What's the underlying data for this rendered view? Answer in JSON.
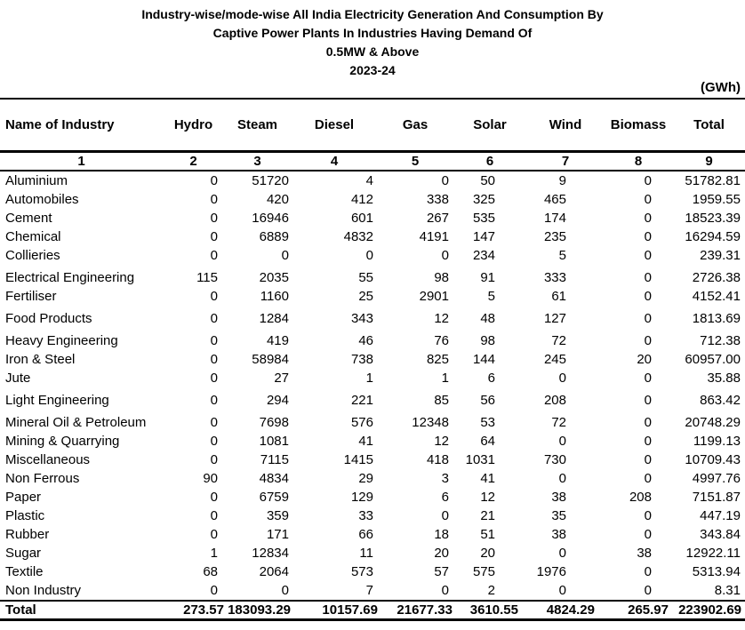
{
  "title": {
    "line1": "Industry-wise/mode-wise All India Electricity Generation And Consumption By",
    "line2": "Captive Power Plants In Industries Having Demand Of",
    "line3": "0.5MW & Above",
    "line4": "2023-24"
  },
  "unit_label": "(GWh)",
  "colors": {
    "text": "#000000",
    "background": "#ffffff",
    "rule": "#000000"
  },
  "table": {
    "columns": [
      "Name of Industry",
      "Hydro",
      "Steam",
      "Diesel",
      "Gas",
      "Solar",
      "Wind",
      "Biomass",
      "Total"
    ],
    "column_numbers": [
      "1",
      "2",
      "3",
      "4",
      "5",
      "6",
      "7",
      "8",
      "9"
    ],
    "rows": [
      {
        "name": "Aluminium",
        "values": [
          "0",
          "51720",
          "4",
          "0",
          "50",
          "9",
          "0",
          "51782.81"
        ]
      },
      {
        "name": "Automobiles",
        "values": [
          "0",
          "420",
          "412",
          "338",
          "325",
          "465",
          "0",
          "1959.55"
        ]
      },
      {
        "name": "Cement",
        "values": [
          "0",
          "16946",
          "601",
          "267",
          "535",
          "174",
          "0",
          "18523.39"
        ]
      },
      {
        "name": "Chemical",
        "values": [
          "0",
          "6889",
          "4832",
          "4191",
          "147",
          "235",
          "0",
          "16294.59"
        ]
      },
      {
        "name": "Collieries",
        "values": [
          "0",
          "0",
          "0",
          "0",
          "234",
          "5",
          "0",
          "239.31"
        ]
      },
      {
        "name": "Electrical Engineering",
        "values": [
          "115",
          "2035",
          "55",
          "98",
          "91",
          "333",
          "0",
          "2726.38"
        ],
        "gap": true
      },
      {
        "name": "Fertiliser",
        "values": [
          "0",
          "1160",
          "25",
          "2901",
          "5",
          "61",
          "0",
          "4152.41"
        ]
      },
      {
        "name": "Food Products",
        "values": [
          "0",
          "1284",
          "343",
          "12",
          "48",
          "127",
          "0",
          "1813.69"
        ],
        "gap": true
      },
      {
        "name": "Heavy Engineering",
        "values": [
          "0",
          "419",
          "46",
          "76",
          "98",
          "72",
          "0",
          "712.38"
        ],
        "gap": true
      },
      {
        "name": "Iron & Steel",
        "values": [
          "0",
          "58984",
          "738",
          "825",
          "144",
          "245",
          "20",
          "60957.00"
        ]
      },
      {
        "name": "Jute",
        "values": [
          "0",
          "27",
          "1",
          "1",
          "6",
          "0",
          "0",
          "35.88"
        ]
      },
      {
        "name": "Light Engineering",
        "values": [
          "0",
          "294",
          "221",
          "85",
          "56",
          "208",
          "0",
          "863.42"
        ],
        "gap": true
      },
      {
        "name": "Mineral Oil & Petroleum",
        "values": [
          "0",
          "7698",
          "576",
          "12348",
          "53",
          "72",
          "0",
          "20748.29"
        ],
        "gap": true
      },
      {
        "name": "Mining & Quarrying",
        "values": [
          "0",
          "1081",
          "41",
          "12",
          "64",
          "0",
          "0",
          "1199.13"
        ]
      },
      {
        "name": "Miscellaneous",
        "values": [
          "0",
          "7115",
          "1415",
          "418",
          "1031",
          "730",
          "0",
          "10709.43"
        ]
      },
      {
        "name": "Non Ferrous",
        "values": [
          "90",
          "4834",
          "29",
          "3",
          "41",
          "0",
          "0",
          "4997.76"
        ]
      },
      {
        "name": "Paper",
        "values": [
          "0",
          "6759",
          "129",
          "6",
          "12",
          "38",
          "208",
          "7151.87"
        ]
      },
      {
        "name": "Plastic",
        "values": [
          "0",
          "359",
          "33",
          "0",
          "21",
          "35",
          "0",
          "447.19"
        ]
      },
      {
        "name": "Rubber",
        "values": [
          "0",
          "171",
          "66",
          "18",
          "51",
          "38",
          "0",
          "343.84"
        ]
      },
      {
        "name": "Sugar",
        "values": [
          "1",
          "12834",
          "11",
          "20",
          "20",
          "0",
          "38",
          "12922.11"
        ]
      },
      {
        "name": "Textile",
        "values": [
          "68",
          "2064",
          "573",
          "57",
          "575",
          "1976",
          "0",
          "5313.94"
        ]
      },
      {
        "name": "Non Industry",
        "values": [
          "0",
          "0",
          "7",
          "0",
          "2",
          "0",
          "0",
          "8.31"
        ]
      }
    ],
    "total": {
      "name": "Total",
      "values": [
        "273.57",
        "183093.29",
        "10157.69",
        "21677.33",
        "3610.55",
        "4824.29",
        "265.97",
        "223902.69"
      ]
    }
  }
}
